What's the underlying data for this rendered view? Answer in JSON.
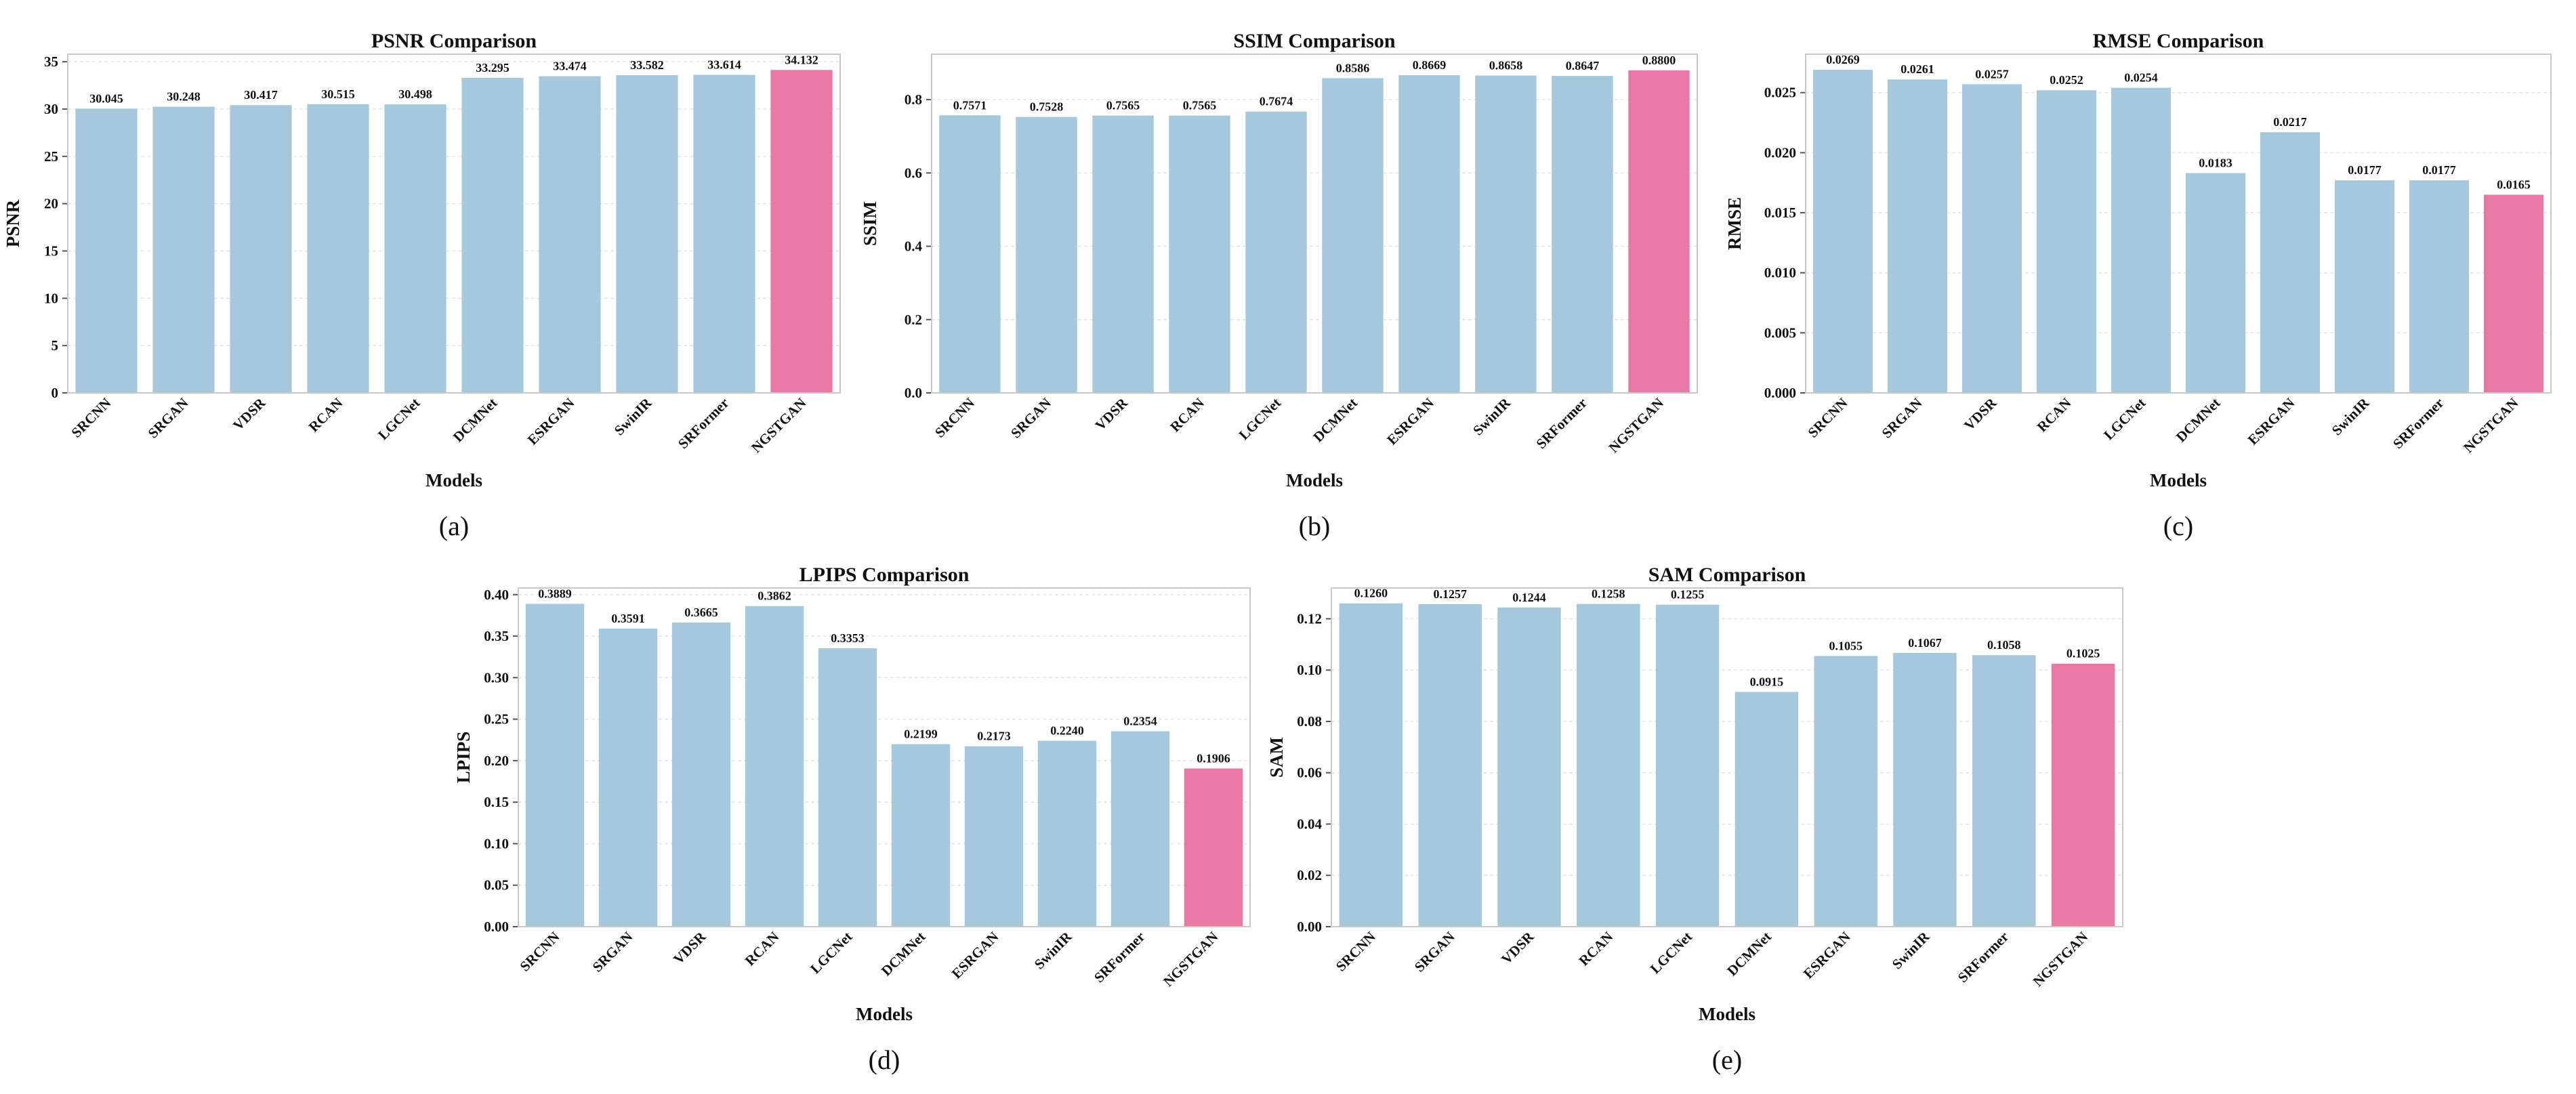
{
  "colors": {
    "default_bar": "#a6c8dd",
    "highlight_bar": "#e879a4"
  },
  "chart_data": [
    {
      "id": "psnr",
      "type": "bar",
      "title": "PSNR Comparison",
      "xlabel": "Models",
      "ylabel": "PSNR",
      "panel": "(a)",
      "categories": [
        "SRCNN",
        "SRGAN",
        "VDSR",
        "RCAN",
        "LGCNet",
        "DCMNet",
        "ESRGAN",
        "SwinIR",
        "SRFormer",
        "NGSTGAN"
      ],
      "values": [
        30.045,
        30.248,
        30.417,
        30.515,
        30.498,
        33.295,
        33.474,
        33.582,
        33.614,
        34.132
      ],
      "value_labels": [
        "30.045",
        "30.248",
        "30.417",
        "30.515",
        "30.498",
        "33.295",
        "33.474",
        "33.582",
        "33.614",
        "34.132"
      ],
      "ylim": [
        0,
        35.8
      ],
      "yticks": [
        "0",
        "5",
        "10",
        "15",
        "20",
        "25",
        "30",
        "35"
      ],
      "highlight": "NGSTGAN",
      "grid": true
    },
    {
      "id": "ssim",
      "type": "bar",
      "title": "SSIM Comparison",
      "xlabel": "Models",
      "ylabel": "SSIM",
      "panel": "(b)",
      "categories": [
        "SRCNN",
        "SRGAN",
        "VDSR",
        "RCAN",
        "LGCNet",
        "DCMNet",
        "ESRGAN",
        "SwinIR",
        "SRFormer",
        "NGSTGAN"
      ],
      "values": [
        0.7571,
        0.7528,
        0.7565,
        0.7565,
        0.7674,
        0.8586,
        0.8669,
        0.8658,
        0.8647,
        0.88
      ],
      "value_labels": [
        "0.7571",
        "0.7528",
        "0.7565",
        "0.7565",
        "0.7674",
        "0.8586",
        "0.8669",
        "0.8658",
        "0.8647",
        "0.8800"
      ],
      "ylim": [
        0,
        0.924
      ],
      "yticks": [
        "0.0",
        "0.2",
        "0.4",
        "0.6",
        "0.8"
      ],
      "highlight": "NGSTGAN",
      "grid": true
    },
    {
      "id": "rmse",
      "type": "bar",
      "title": "RMSE Comparison",
      "xlabel": "Models",
      "ylabel": "RMSE",
      "panel": "(c)",
      "categories": [
        "SRCNN",
        "SRGAN",
        "VDSR",
        "RCAN",
        "LGCNet",
        "DCMNet",
        "ESRGAN",
        "SwinIR",
        "SRFormer",
        "NGSTGAN"
      ],
      "values": [
        0.0269,
        0.0261,
        0.0257,
        0.0252,
        0.0254,
        0.0183,
        0.0217,
        0.0177,
        0.0177,
        0.0165
      ],
      "value_labels": [
        "0.0269",
        "0.0261",
        "0.0257",
        "0.0252",
        "0.0254",
        "0.0183",
        "0.0217",
        "0.0177",
        "0.0177",
        "0.0165"
      ],
      "ylim": [
        0,
        0.0282
      ],
      "yticks": [
        "0.000",
        "0.005",
        "0.010",
        "0.015",
        "0.020",
        "0.025"
      ],
      "highlight": "NGSTGAN",
      "grid": true
    },
    {
      "id": "lpips",
      "type": "bar",
      "title": "LPIPS Comparison",
      "xlabel": "Models",
      "ylabel": "LPIPS",
      "panel": "(d)",
      "categories": [
        "SRCNN",
        "SRGAN",
        "VDSR",
        "RCAN",
        "LGCNet",
        "DCMNet",
        "ESRGAN",
        "SwinIR",
        "SRFormer",
        "NGSTGAN"
      ],
      "values": [
        0.3889,
        0.3591,
        0.3665,
        0.3862,
        0.3353,
        0.2199,
        0.2173,
        0.224,
        0.2354,
        0.1906
      ],
      "value_labels": [
        "0.3889",
        "0.3591",
        "0.3665",
        "0.3862",
        "0.3353",
        "0.2199",
        "0.2173",
        "0.2240",
        "0.2354",
        "0.1906"
      ],
      "ylim": [
        0,
        0.408
      ],
      "yticks": [
        "0.00",
        "0.05",
        "0.10",
        "0.15",
        "0.20",
        "0.25",
        "0.30",
        "0.35",
        "0.40"
      ],
      "highlight": "NGSTGAN",
      "grid": true
    },
    {
      "id": "sam",
      "type": "bar",
      "title": "SAM Comparison",
      "xlabel": "Models",
      "ylabel": "SAM",
      "panel": "(e)",
      "categories": [
        "SRCNN",
        "SRGAN",
        "VDSR",
        "RCAN",
        "LGCNet",
        "DCMNet",
        "ESRGAN",
        "SwinIR",
        "SRFormer",
        "NGSTGAN"
      ],
      "values": [
        0.126,
        0.1257,
        0.1244,
        0.1258,
        0.1255,
        0.0915,
        0.1055,
        0.1067,
        0.1058,
        0.1025
      ],
      "value_labels": [
        "0.1260",
        "0.1257",
        "0.1244",
        "0.1258",
        "0.1255",
        "0.0915",
        "0.1055",
        "0.1067",
        "0.1058",
        "0.1025"
      ],
      "ylim": [
        0,
        0.132
      ],
      "yticks": [
        "0.00",
        "0.02",
        "0.04",
        "0.06",
        "0.08",
        "0.10",
        "0.12"
      ],
      "highlight": "NGSTGAN",
      "grid": true
    }
  ]
}
